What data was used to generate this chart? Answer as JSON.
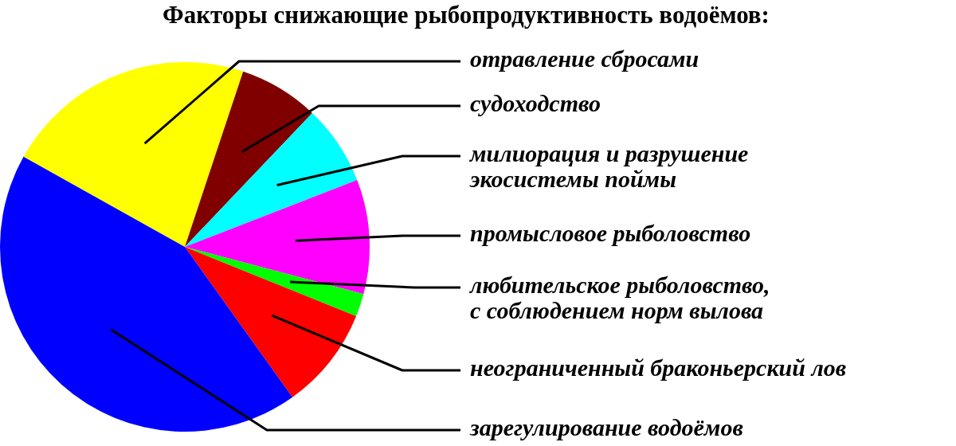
{
  "chart_data": {
    "type": "pie",
    "title": "Факторы снижающие рыбопродуктивность водоёмов:",
    "categories": [
      "отравление сбросами",
      "судоходство",
      "милиорация и разрушение\nэкосистемы поймы",
      "промысловое рыболовство",
      "любительское рыболовство,\nс соблюдением норм вылова",
      "неограниченный браконьерский лов",
      "зарегулирование водоёмов"
    ],
    "values": [
      22,
      7,
      7,
      10,
      2,
      9,
      43
    ],
    "colors": [
      "#ffff00",
      "#800000",
      "#00ffff",
      "#ff00ff",
      "#00ff00",
      "#ff0000",
      "#0000ff"
    ]
  }
}
